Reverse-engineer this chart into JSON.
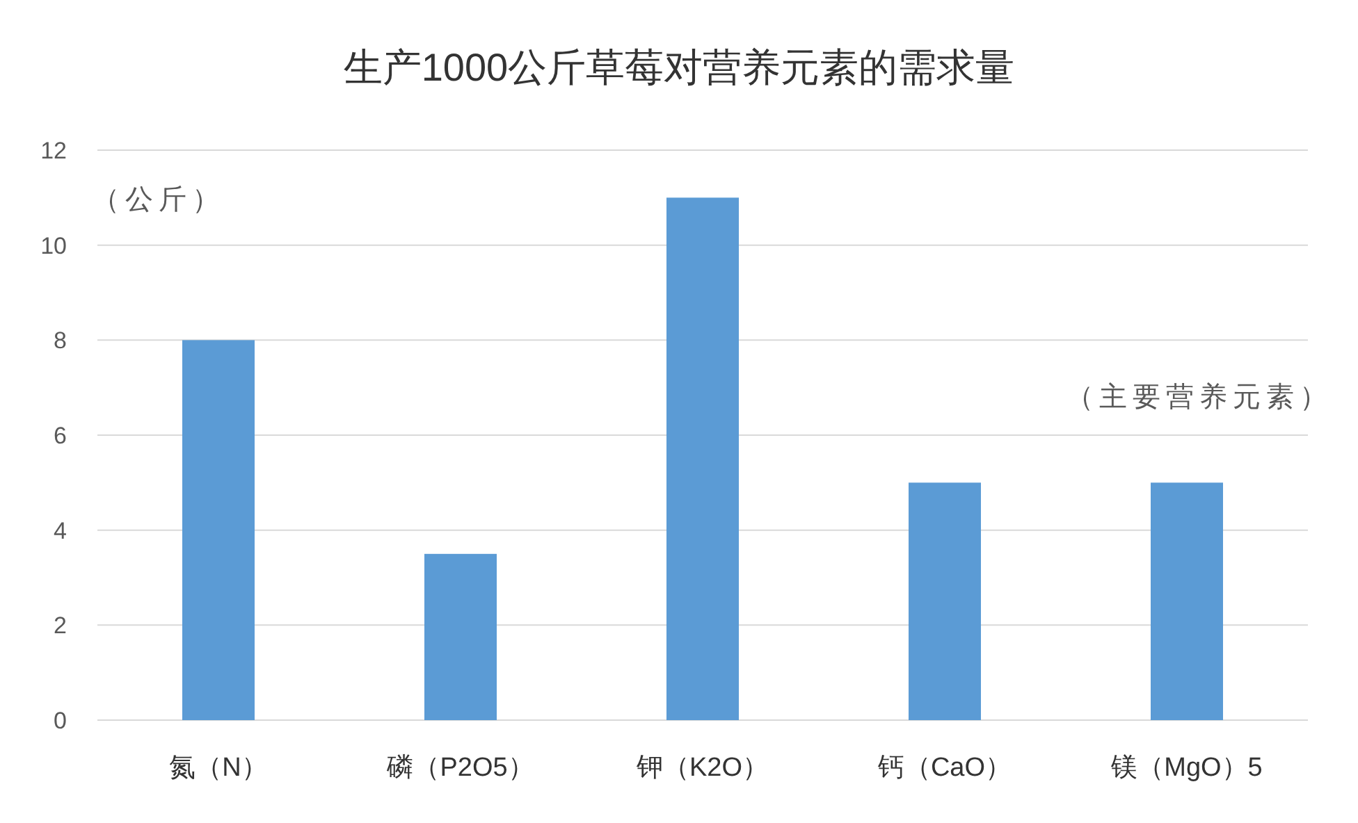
{
  "chart_data": {
    "type": "bar",
    "title": "生产1000公斤草莓对营养元素的需求量",
    "ylabel": "（公斤）",
    "categories": [
      "氮（N）",
      "磷（P2O5）",
      "钾（K2O）",
      "钙（CaO）",
      "镁（MgO）5"
    ],
    "values": [
      8,
      3.5,
      11,
      5,
      5
    ],
    "color": "#5b9bd5",
    "ylim": [
      0,
      12
    ],
    "yticks": [
      0,
      2,
      4,
      6,
      8,
      10,
      12
    ],
    "grid": "y",
    "annotations": [
      "（主要营养元素）"
    ]
  }
}
